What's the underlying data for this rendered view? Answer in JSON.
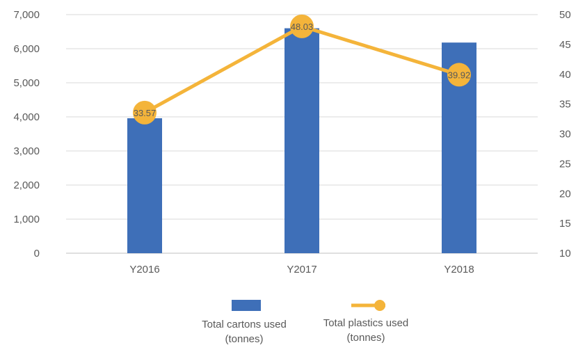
{
  "chart_data": {
    "type": "bar",
    "categories": [
      "Y2016",
      "Y2017",
      "Y2018"
    ],
    "series": [
      {
        "name": "Total cartons used (tonnes)",
        "chart_type": "bar",
        "axis": "left",
        "color": "#3E6FB8",
        "values": [
          3960,
          6600,
          6180
        ]
      },
      {
        "name": "Total plastics used (tonnes)",
        "chart_type": "line",
        "axis": "right",
        "color": "#F4B43A",
        "values": [
          33.57,
          48.03,
          39.92
        ],
        "data_labels": [
          "33.57",
          "48.03",
          "39.92"
        ]
      }
    ],
    "y_left": {
      "ylim": [
        0,
        7000
      ],
      "ticks": [
        0,
        1000,
        2000,
        3000,
        4000,
        5000,
        6000,
        7000
      ],
      "tick_labels": [
        "0",
        "1,000",
        "2,000",
        "3,000",
        "4,000",
        "5,000",
        "6,000",
        "7,000"
      ]
    },
    "y_right": {
      "ylim": [
        10,
        50
      ],
      "ticks": [
        10,
        15,
        20,
        25,
        30,
        35,
        40,
        45,
        50
      ],
      "tick_labels": [
        "10",
        "15",
        "20",
        "25",
        "30",
        "35",
        "40",
        "45",
        "50"
      ]
    },
    "grid": true,
    "legend": {
      "position": "bottom",
      "items": [
        {
          "line1": "Total cartons used",
          "line2": "(tonnes)",
          "symbol": "bar"
        },
        {
          "line1": "Total plastics used",
          "line2": "(tonnes)",
          "symbol": "line-marker"
        }
      ]
    },
    "title": "",
    "xlabel": "",
    "ylabel": ""
  }
}
